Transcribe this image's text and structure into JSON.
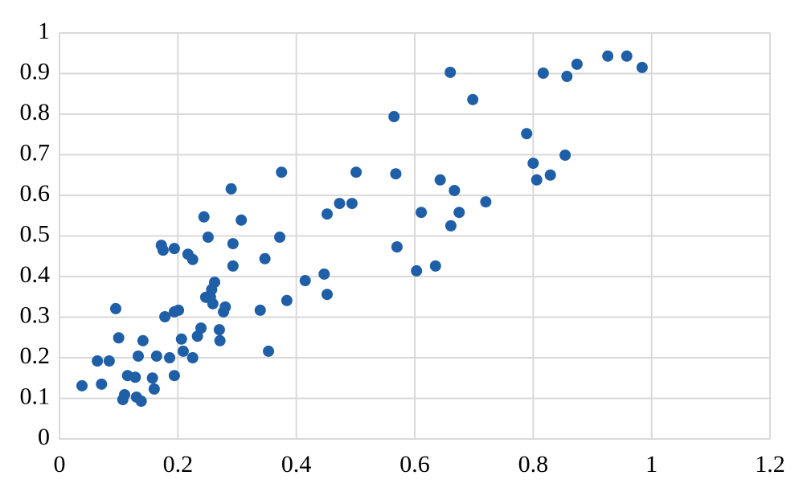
{
  "chart_data": {
    "type": "scatter",
    "color": "#1f5fa8",
    "grid": true,
    "xlim": [
      0,
      1.2
    ],
    "xticks": [
      0,
      0.2,
      0.4,
      0.6,
      0.8,
      1,
      1.2
    ],
    "ylim": [
      0,
      1
    ],
    "yticks": [
      0,
      0.1,
      0.2,
      0.3,
      0.4,
      0.5,
      0.6,
      0.7,
      0.8,
      0.9,
      1
    ],
    "x": [
      0.038,
      0.071,
      0.064,
      0.084,
      0.095,
      0.1,
      0.107,
      0.11,
      0.115,
      0.128,
      0.13,
      0.133,
      0.138,
      0.141,
      0.157,
      0.16,
      0.164,
      0.172,
      0.175,
      0.178,
      0.186,
      0.194,
      0.194,
      0.194,
      0.201,
      0.206,
      0.209,
      0.217,
      0.225,
      0.225,
      0.233,
      0.239,
      0.244,
      0.247,
      0.251,
      0.255,
      0.257,
      0.259,
      0.262,
      0.27,
      0.271,
      0.277,
      0.28,
      0.29,
      0.293,
      0.293,
      0.307,
      0.339,
      0.347,
      0.353,
      0.372,
      0.375,
      0.384,
      0.415,
      0.447,
      0.452,
      0.452,
      0.473,
      0.494,
      0.501,
      0.565,
      0.568,
      0.57,
      0.603,
      0.611,
      0.635,
      0.643,
      0.66,
      0.661,
      0.667,
      0.675,
      0.698,
      0.72,
      0.789,
      0.8,
      0.806,
      0.817,
      0.829,
      0.854,
      0.857,
      0.874,
      0.926,
      0.958,
      0.984
    ],
    "values": [
      0.131,
      0.135,
      0.192,
      0.192,
      0.321,
      0.249,
      0.097,
      0.109,
      0.156,
      0.152,
      0.103,
      0.204,
      0.093,
      0.242,
      0.15,
      0.123,
      0.204,
      0.477,
      0.465,
      0.301,
      0.2,
      0.469,
      0.156,
      0.313,
      0.317,
      0.246,
      0.216,
      0.455,
      0.442,
      0.2,
      0.253,
      0.273,
      0.547,
      0.349,
      0.497,
      0.349,
      0.368,
      0.333,
      0.386,
      0.269,
      0.242,
      0.313,
      0.325,
      0.616,
      0.481,
      0.426,
      0.539,
      0.317,
      0.444,
      0.216,
      0.497,
      0.657,
      0.341,
      0.39,
      0.406,
      0.356,
      0.554,
      0.58,
      0.58,
      0.657,
      0.794,
      0.653,
      0.473,
      0.414,
      0.558,
      0.426,
      0.638,
      0.903,
      0.525,
      0.612,
      0.558,
      0.836,
      0.584,
      0.752,
      0.679,
      0.638,
      0.901,
      0.65,
      0.699,
      0.893,
      0.923,
      0.943,
      0.943,
      0.915
    ]
  }
}
